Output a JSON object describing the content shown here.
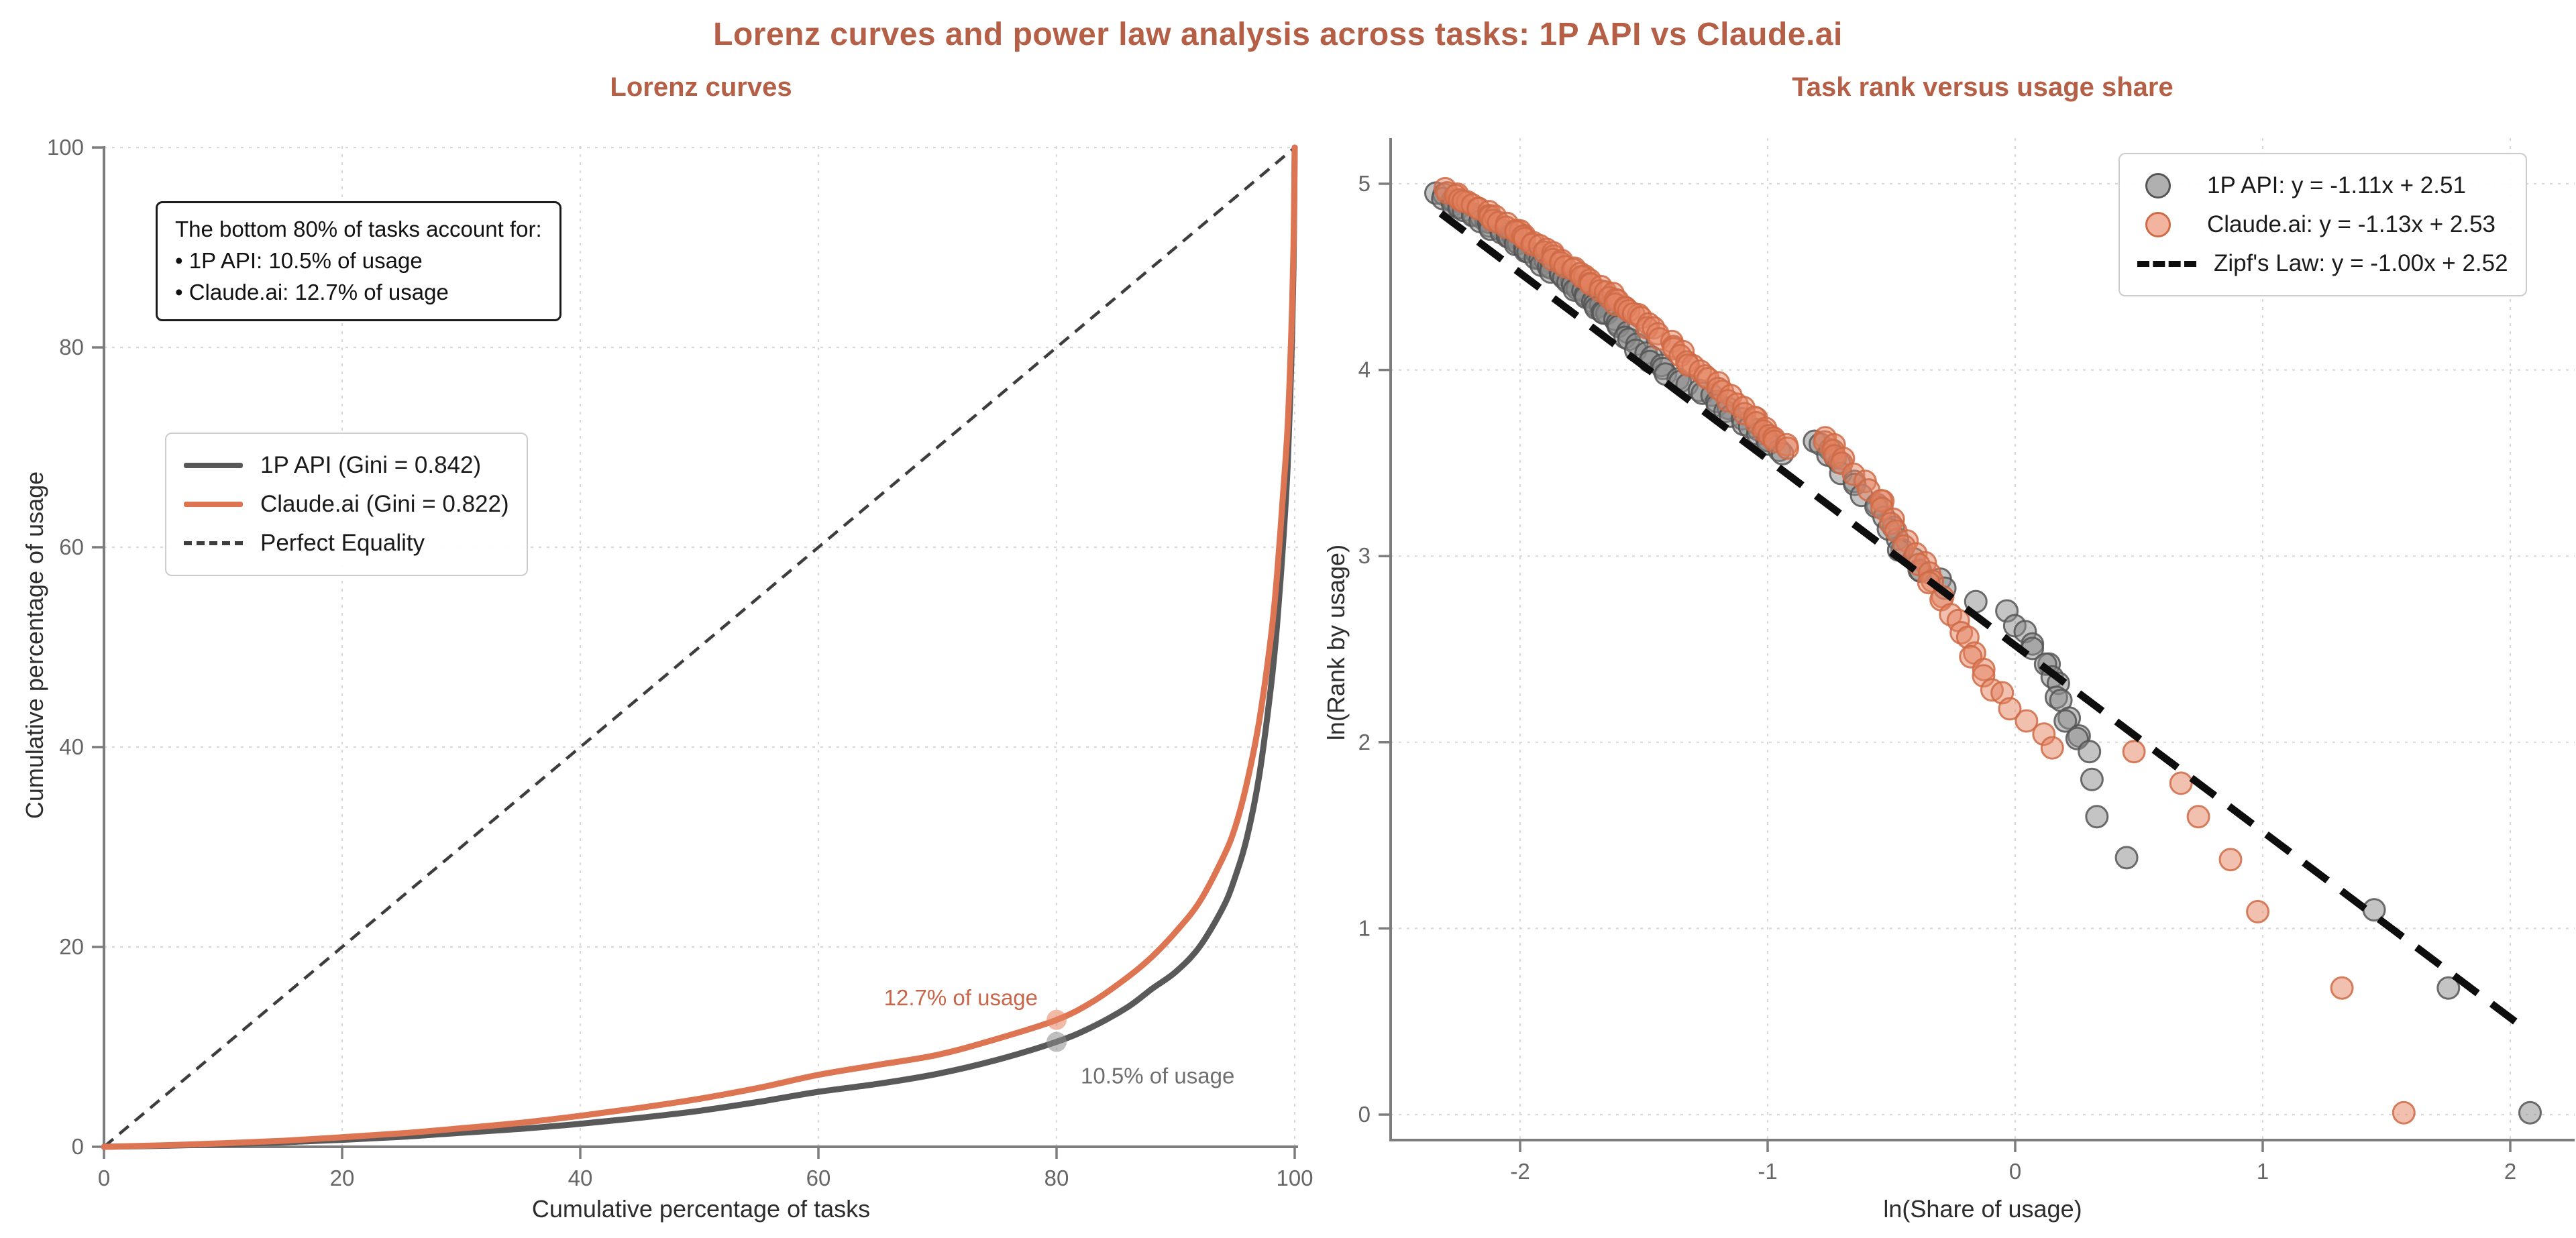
{
  "figure": {
    "title": "Lorenz curves and power law analysis across tasks: 1P API vs Claude.ai",
    "title_color": "#b45f46",
    "background": "#ffffff",
    "spine_color": "#7d7d7d",
    "grid_color": "#d9d9d9",
    "tick_label_color": "#666666"
  },
  "chart_data": [
    {
      "type": "line",
      "title": "Lorenz curves",
      "xlabel": "Cumulative percentage of tasks",
      "ylabel": "Cumulative percentage of usage",
      "x_ticks": [
        0,
        20,
        40,
        60,
        80,
        100
      ],
      "y_ticks": [
        0,
        20,
        40,
        60,
        80,
        100
      ],
      "xlim": [
        0,
        100
      ],
      "ylim": [
        0,
        100
      ],
      "grid": true,
      "legend_position": "upper left area",
      "note": {
        "line1": "The bottom 80% of tasks account for:",
        "line2": "• 1P API: 10.5% of usage",
        "line3": "• Claude.ai: 12.7% of usage"
      },
      "legend": [
        {
          "label": "1P API (Gini = 0.842)",
          "color": "#595959",
          "style": "line"
        },
        {
          "label": "Claude.ai (Gini = 0.822)",
          "color": "#dd7452",
          "style": "line"
        },
        {
          "label": "Perfect Equality",
          "color": "#3d3d3d",
          "style": "dash"
        }
      ],
      "equality_line": {
        "label": "Perfect Equality",
        "color": "#3d3d3d",
        "points": [
          [
            0,
            0
          ],
          [
            100,
            100
          ]
        ]
      },
      "series": [
        {
          "name": "1P API",
          "gini": 0.842,
          "color": "#595959",
          "points": [
            [
              0,
              0
            ],
            [
              5,
              0.1
            ],
            [
              10,
              0.25
            ],
            [
              15,
              0.45
            ],
            [
              20,
              0.7
            ],
            [
              25,
              1.0
            ],
            [
              30,
              1.4
            ],
            [
              35,
              1.8
            ],
            [
              40,
              2.3
            ],
            [
              45,
              2.9
            ],
            [
              50,
              3.6
            ],
            [
              55,
              4.5
            ],
            [
              60,
              5.5
            ],
            [
              65,
              6.3
            ],
            [
              70,
              7.3
            ],
            [
              75,
              8.7
            ],
            [
              80,
              10.5
            ],
            [
              83,
              12.0
            ],
            [
              86,
              14.0
            ],
            [
              88,
              15.8
            ],
            [
              90,
              17.5
            ],
            [
              92,
              20.0
            ],
            [
              94,
              24.0
            ],
            [
              95,
              27.0
            ],
            [
              96,
              31.0
            ],
            [
              97,
              37.0
            ],
            [
              98,
              46.0
            ],
            [
              98.5,
              52.0
            ],
            [
              99,
              60.0
            ],
            [
              99.4,
              68.0
            ],
            [
              99.7,
              78.0
            ],
            [
              99.9,
              88.0
            ],
            [
              100,
              100
            ]
          ]
        },
        {
          "name": "Claude.ai",
          "gini": 0.822,
          "color": "#dd7452",
          "points": [
            [
              0,
              0
            ],
            [
              5,
              0.15
            ],
            [
              10,
              0.35
            ],
            [
              15,
              0.6
            ],
            [
              20,
              0.95
            ],
            [
              25,
              1.35
            ],
            [
              30,
              1.85
            ],
            [
              35,
              2.4
            ],
            [
              40,
              3.1
            ],
            [
              45,
              3.9
            ],
            [
              50,
              4.8
            ],
            [
              55,
              5.9
            ],
            [
              60,
              7.2
            ],
            [
              65,
              8.2
            ],
            [
              70,
              9.2
            ],
            [
              75,
              10.8
            ],
            [
              80,
              12.7
            ],
            [
              83,
              14.5
            ],
            [
              86,
              17.0
            ],
            [
              88,
              19.0
            ],
            [
              90,
              21.5
            ],
            [
              92,
              24.5
            ],
            [
              94,
              29.0
            ],
            [
              95,
              32.0
            ],
            [
              96,
              36.5
            ],
            [
              97,
              42.5
            ],
            [
              98,
              51.0
            ],
            [
              98.5,
              57.0
            ],
            [
              99,
              65.0
            ],
            [
              99.4,
              72.0
            ],
            [
              99.7,
              81.0
            ],
            [
              99.9,
              90.0
            ],
            [
              100,
              100
            ]
          ]
        }
      ],
      "markers": [
        {
          "x": 80,
          "y": 12.7,
          "label": "12.7% of usage",
          "series": "Claude.ai",
          "fill": "#e4825f",
          "label_color": "#c7664a",
          "align": "right"
        },
        {
          "x": 80,
          "y": 10.5,
          "label": "10.5% of usage",
          "series": "1P API",
          "fill": "#8a8a8a",
          "label_color": "#6f6f6f",
          "align": "left"
        }
      ]
    },
    {
      "type": "scatter",
      "title": "Task rank versus usage share",
      "xlabel": "ln(Share of usage)",
      "ylabel": "ln(Rank by usage)",
      "x_ticks": [
        -2,
        -1,
        0,
        1,
        2
      ],
      "y_ticks": [
        0,
        1,
        2,
        3,
        4,
        5
      ],
      "xlim": [
        -2.52,
        2.27
      ],
      "ylim": [
        -0.15,
        5.24
      ],
      "grid": true,
      "legend_position": "upper right",
      "legend": [
        {
          "label": "1P API: y = -1.11x + 2.51",
          "fill": "#b0b0b0",
          "edge": "#555555",
          "style": "circle"
        },
        {
          "label": "Claude.ai: y = -1.13x + 2.53",
          "fill": "#f2b49e",
          "edge": "#cf6a45",
          "style": "circle"
        },
        {
          "label": "Zipf's Law: y = -1.00x + 2.52",
          "color": "#0d0d0d",
          "style": "dash"
        }
      ],
      "zipf_line": {
        "slope": -1.0,
        "intercept": 2.52,
        "x_start": -2.32,
        "x_end": 2.07,
        "color": "#0d0d0d"
      },
      "series": [
        {
          "name": "1P API",
          "fit": {
            "slope": -1.11,
            "intercept": 2.51
          },
          "fill": "#8a8a8a",
          "edge": "#555555",
          "band_segments": [
            [
              [
                -2.34,
                4.95
              ],
              [
                -2.25,
                4.88
              ],
              [
                -2.15,
                4.8
              ],
              [
                -2.05,
                4.72
              ],
              [
                -1.95,
                4.62
              ],
              [
                -1.85,
                4.52
              ],
              [
                -1.75,
                4.42
              ],
              [
                -1.65,
                4.3
              ],
              [
                -1.55,
                4.16
              ],
              [
                -1.47,
                4.05
              ],
              [
                -1.4,
                3.98
              ],
              [
                -1.32,
                3.92
              ],
              [
                -1.24,
                3.86
              ],
              [
                -1.16,
                3.78
              ],
              [
                -1.08,
                3.7
              ],
              [
                -1.0,
                3.62
              ],
              [
                -0.94,
                3.55
              ]
            ],
            [
              [
                -0.8,
                3.62
              ],
              [
                -0.72,
                3.5
              ],
              [
                -0.64,
                3.38
              ],
              [
                -0.56,
                3.26
              ],
              [
                -0.5,
                3.14
              ],
              [
                -0.45,
                3.03
              ],
              [
                -0.38,
                2.92
              ],
              [
                -0.28,
                2.83
              ],
              [
                -0.16,
                2.76
              ],
              [
                -0.04,
                2.7
              ],
              [
                0.04,
                2.6
              ],
              [
                0.08,
                2.5
              ],
              [
                0.12,
                2.42
              ],
              [
                0.16,
                2.32
              ],
              [
                0.19,
                2.22
              ],
              [
                0.22,
                2.12
              ],
              [
                0.25,
                2.02
              ]
            ]
          ],
          "tail_points": [
            [
              0.3,
              1.95
            ],
            [
              0.31,
              1.8
            ],
            [
              0.33,
              1.6
            ],
            [
              0.45,
              1.38
            ],
            [
              1.45,
              1.1
            ],
            [
              1.75,
              0.68
            ],
            [
              2.08,
              0.01
            ]
          ]
        },
        {
          "name": "Claude.ai",
          "fit": {
            "slope": -1.13,
            "intercept": 2.53
          },
          "fill": "#e4825f",
          "edge": "#cf6a45",
          "band_segments": [
            [
              [
                -2.31,
                4.97
              ],
              [
                -2.21,
                4.9
              ],
              [
                -2.11,
                4.82
              ],
              [
                -2.01,
                4.74
              ],
              [
                -1.91,
                4.65
              ],
              [
                -1.81,
                4.56
              ],
              [
                -1.71,
                4.47
              ],
              [
                -1.62,
                4.38
              ],
              [
                -1.54,
                4.3
              ],
              [
                -1.46,
                4.22
              ],
              [
                -1.38,
                4.12
              ],
              [
                -1.3,
                4.02
              ],
              [
                -1.22,
                3.93
              ],
              [
                -1.14,
                3.84
              ],
              [
                -1.06,
                3.74
              ],
              [
                -0.98,
                3.64
              ],
              [
                -0.92,
                3.58
              ]
            ],
            [
              [
                -0.78,
                3.64
              ],
              [
                -0.7,
                3.52
              ],
              [
                -0.62,
                3.4
              ],
              [
                -0.55,
                3.3
              ],
              [
                -0.49,
                3.18
              ],
              [
                -0.44,
                3.06
              ],
              [
                -0.38,
                2.96
              ],
              [
                -0.33,
                2.86
              ],
              [
                -0.29,
                2.76
              ],
              [
                -0.25,
                2.66
              ],
              [
                -0.2,
                2.56
              ],
              [
                -0.16,
                2.46
              ],
              [
                -0.12,
                2.36
              ],
              [
                -0.07,
                2.26
              ],
              [
                -0.02,
                2.18
              ],
              [
                0.04,
                2.12
              ],
              [
                0.1,
                2.04
              ],
              [
                0.15,
                1.97
              ]
            ]
          ],
          "tail_points": [
            [
              0.48,
              1.95
            ],
            [
              0.67,
              1.78
            ],
            [
              0.74,
              1.6
            ],
            [
              0.87,
              1.37
            ],
            [
              0.98,
              1.09
            ],
            [
              1.32,
              0.68
            ],
            [
              1.57,
              0.01
            ]
          ]
        }
      ]
    }
  ]
}
